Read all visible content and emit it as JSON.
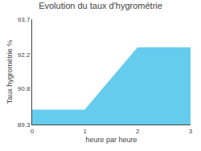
{
  "chart_data": {
    "type": "area",
    "title": "Evolution du taux d'hygrométrie",
    "x_label": "heure par heure",
    "y_label": "Taux hygrométrie %",
    "x": [
      0,
      1,
      2,
      3
    ],
    "values": [
      89.9,
      89.9,
      92.5,
      92.5
    ],
    "color": "#66ccee",
    "xlim": [
      0,
      3
    ],
    "ylim": [
      89.3,
      93.7
    ],
    "xticks": [
      0,
      1,
      2,
      3
    ],
    "yticks": [
      89.3,
      90.8,
      92.2,
      93.7
    ],
    "grid": false
  }
}
